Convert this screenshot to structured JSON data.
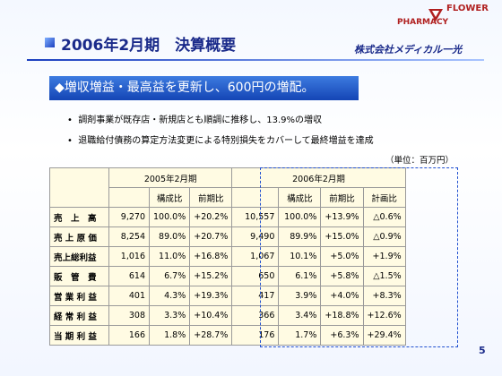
{
  "header": {
    "title": "2006年2月期　決算概要",
    "logo_top": "FLOWER",
    "logo_mid": "PHARMACY",
    "company": "株式会社メディカル一光"
  },
  "banner": "◆増収増益・最高益を更新し、600円の増配。",
  "bullets": [
    "調剤事業が既存店・新規店とも順調に推移し、13.9%の増収",
    "退職給付債務の算定方法変更による特別損失をカバーして最終増益を達成"
  ],
  "unit": "（単位：百万円）",
  "table": {
    "periods": [
      "2005年2月期",
      "2006年2月期"
    ],
    "columns": [
      "構成比",
      "前期比",
      "構成比",
      "前期比",
      "計画比"
    ],
    "rows": [
      [
        "売　上　高",
        "9,270",
        "100.0%",
        "+20.2%",
        "10,557",
        "100.0%",
        "+13.9%",
        "△0.6%"
      ],
      [
        "売 上 原 価",
        "8,254",
        "89.0%",
        "+20.7%",
        "9,490",
        "89.9%",
        "+15.0%",
        "△0.9%"
      ],
      [
        "売上総利益",
        "1,016",
        "11.0%",
        "+16.8%",
        "1,067",
        "10.1%",
        "+5.0%",
        "+1.9%"
      ],
      [
        "販　管　費",
        "614",
        "6.7%",
        "+15.2%",
        "650",
        "6.1%",
        "+5.8%",
        "△1.5%"
      ],
      [
        "営 業 利 益",
        "401",
        "4.3%",
        "+19.3%",
        "417",
        "3.9%",
        "+4.0%",
        "+8.3%"
      ],
      [
        "経 常 利 益",
        "308",
        "3.3%",
        "+10.4%",
        "366",
        "3.4%",
        "+18.8%",
        "+12.6%"
      ],
      [
        "当 期 利 益",
        "166",
        "1.8%",
        "+28.7%",
        "176",
        "1.7%",
        "+6.3%",
        "+29.4%"
      ]
    ]
  },
  "page": "5"
}
